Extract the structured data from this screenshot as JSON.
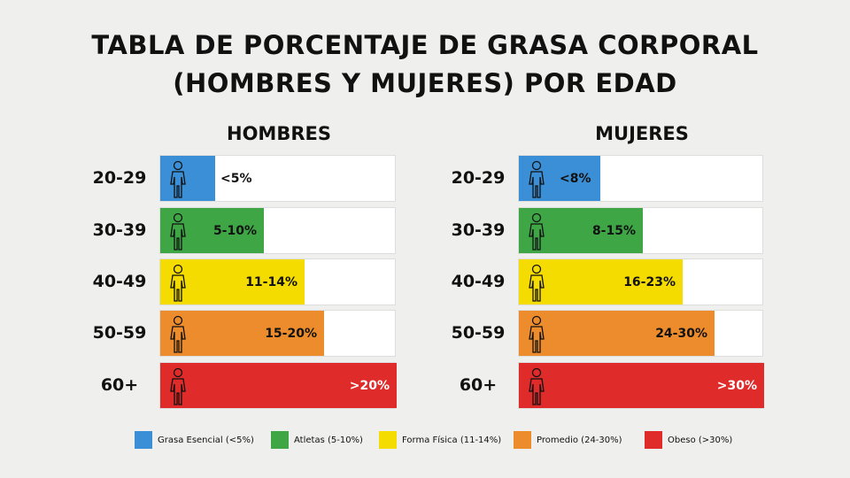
{
  "header": {
    "title_line1": "TABLA DE PORCENTAJE DE GRASA CORPORAL",
    "title_line2": "(HOMBRES Y MUJERES) POR EDAD"
  },
  "panels": [
    {
      "title": "HOMBRES",
      "rows": [
        {
          "age": "20-29",
          "label": "<5%"
        },
        {
          "age": "30-39",
          "label": "5-10%"
        },
        {
          "age": "40-49",
          "label": "11-14%"
        },
        {
          "age": "50-59",
          "label": "15-20%"
        },
        {
          "age": "60+",
          "label": ">20%"
        }
      ]
    },
    {
      "title": "MUJERES",
      "rows": [
        {
          "age": "20-29",
          "label": "<8%"
        },
        {
          "age": "30-39",
          "label": "8-15%"
        },
        {
          "age": "40-49",
          "label": "16-23%"
        },
        {
          "age": "50-59",
          "label": "24-30%"
        },
        {
          "age": "60+",
          "label": ">30%"
        }
      ]
    }
  ],
  "legend": [
    {
      "label": "Grasa Esencial (<5%)",
      "color": "#3b8fd6"
    },
    {
      "label": "Atletas (5-10%)",
      "color": "#3fa646"
    },
    {
      "label": "Forma Física (11-14%)",
      "color": "#f5dc00"
    },
    {
      "label": "Promedio (24-30%)",
      "color": "#ec8c2c"
    },
    {
      "label": "Obeso (>30%)",
      "color": "#e02b2b"
    }
  ]
}
